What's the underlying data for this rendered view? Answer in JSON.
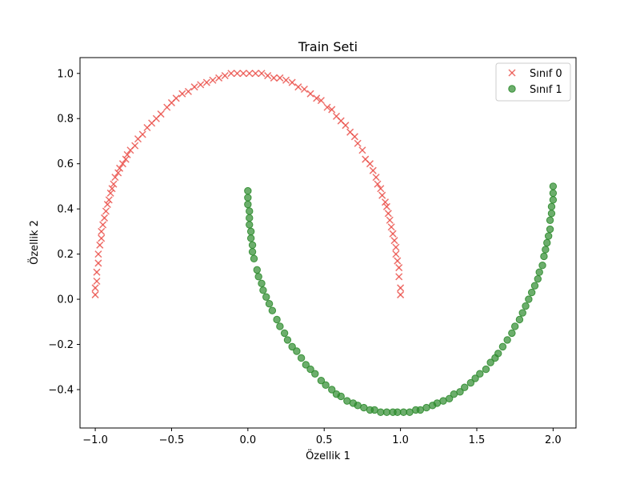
{
  "chart_data": {
    "type": "scatter",
    "title": "Train Seti",
    "xlabel": "Özellik 1",
    "ylabel": "Özellik 2",
    "xlim": [
      -1.1,
      2.15
    ],
    "ylim": [
      -0.57,
      1.07
    ],
    "xticks": [
      -1.0,
      -0.5,
      0.0,
      0.5,
      1.0,
      1.5,
      2.0
    ],
    "xtick_labels": [
      "−1.0",
      "−0.5",
      "0.0",
      "0.5",
      "1.0",
      "1.5",
      "2.0"
    ],
    "yticks": [
      -0.4,
      -0.2,
      0.0,
      0.2,
      0.4,
      0.6,
      0.8,
      1.0
    ],
    "ytick_labels": [
      "−0.4",
      "−0.2",
      "0.0",
      "0.2",
      "0.4",
      "0.6",
      "0.8",
      "1.0"
    ],
    "grid": false,
    "legend_position": "top-right",
    "series": [
      {
        "name": "Sınıf 0",
        "marker": "x",
        "color": "#e8403a",
        "x": [
          -1.0,
          -1.0,
          -0.99,
          -0.99,
          -0.98,
          -0.98,
          -0.97,
          -0.96,
          -0.96,
          -0.95,
          -0.94,
          -0.93,
          -0.92,
          -0.91,
          -0.9,
          -0.89,
          -0.88,
          -0.87,
          -0.85,
          -0.84,
          -0.82,
          -0.8,
          -0.79,
          -0.77,
          -0.74,
          -0.72,
          -0.69,
          -0.66,
          -0.63,
          -0.6,
          -0.57,
          -0.53,
          -0.5,
          -0.47,
          -0.43,
          -0.39,
          -0.35,
          -0.31,
          -0.27,
          -0.23,
          -0.19,
          -0.15,
          -0.11,
          -0.07,
          -0.03,
          0.01,
          0.05,
          0.09,
          0.13,
          0.17,
          0.21,
          0.25,
          0.29,
          0.33,
          0.37,
          0.41,
          0.45,
          0.48,
          0.52,
          0.55,
          0.58,
          0.61,
          0.64,
          0.67,
          0.7,
          0.72,
          0.75,
          0.77,
          0.8,
          0.82,
          0.84,
          0.85,
          0.87,
          0.88,
          0.9,
          0.91,
          0.92,
          0.93,
          0.94,
          0.95,
          0.96,
          0.97,
          0.97,
          0.98,
          0.99,
          0.99,
          1.0,
          1.0
        ],
        "y": [
          0.02,
          0.05,
          0.08,
          0.12,
          0.16,
          0.2,
          0.24,
          0.27,
          0.3,
          0.33,
          0.36,
          0.39,
          0.42,
          0.44,
          0.47,
          0.49,
          0.51,
          0.54,
          0.56,
          0.58,
          0.6,
          0.62,
          0.64,
          0.66,
          0.68,
          0.71,
          0.73,
          0.76,
          0.78,
          0.8,
          0.82,
          0.85,
          0.87,
          0.89,
          0.91,
          0.92,
          0.94,
          0.95,
          0.96,
          0.97,
          0.98,
          0.99,
          1.0,
          1.0,
          1.0,
          1.0,
          1.0,
          1.0,
          0.99,
          0.98,
          0.98,
          0.97,
          0.96,
          0.94,
          0.93,
          0.91,
          0.89,
          0.88,
          0.85,
          0.84,
          0.81,
          0.79,
          0.77,
          0.74,
          0.72,
          0.69,
          0.66,
          0.62,
          0.6,
          0.57,
          0.54,
          0.51,
          0.49,
          0.46,
          0.43,
          0.41,
          0.38,
          0.35,
          0.32,
          0.29,
          0.26,
          0.23,
          0.2,
          0.17,
          0.14,
          0.1,
          0.05,
          0.02
        ]
      },
      {
        "name": "Sınıf 1",
        "marker": "o",
        "color": "#2e8b2e",
        "x": [
          0.0,
          0.0,
          0.0,
          0.01,
          0.01,
          0.01,
          0.02,
          0.02,
          0.03,
          0.03,
          0.04,
          0.06,
          0.07,
          0.09,
          0.1,
          0.12,
          0.14,
          0.16,
          0.19,
          0.21,
          0.24,
          0.26,
          0.29,
          0.32,
          0.35,
          0.38,
          0.41,
          0.44,
          0.48,
          0.51,
          0.55,
          0.58,
          0.61,
          0.65,
          0.69,
          0.72,
          0.76,
          0.8,
          0.83,
          0.87,
          0.91,
          0.95,
          0.98,
          1.02,
          1.06,
          1.1,
          1.13,
          1.17,
          1.21,
          1.24,
          1.28,
          1.32,
          1.35,
          1.39,
          1.42,
          1.46,
          1.49,
          1.52,
          1.56,
          1.59,
          1.62,
          1.64,
          1.67,
          1.7,
          1.73,
          1.75,
          1.78,
          1.8,
          1.82,
          1.84,
          1.86,
          1.88,
          1.9,
          1.91,
          1.93,
          1.94,
          1.95,
          1.96,
          1.97,
          1.98,
          1.98,
          1.99,
          1.99,
          2.0,
          2.0,
          2.0
        ],
        "y": [
          0.48,
          0.45,
          0.42,
          0.39,
          0.36,
          0.33,
          0.3,
          0.27,
          0.24,
          0.21,
          0.18,
          0.13,
          0.1,
          0.07,
          0.04,
          0.01,
          -0.02,
          -0.05,
          -0.09,
          -0.12,
          -0.15,
          -0.18,
          -0.21,
          -0.23,
          -0.26,
          -0.29,
          -0.31,
          -0.33,
          -0.36,
          -0.38,
          -0.4,
          -0.42,
          -0.43,
          -0.45,
          -0.46,
          -0.47,
          -0.48,
          -0.49,
          -0.49,
          -0.5,
          -0.5,
          -0.5,
          -0.5,
          -0.5,
          -0.5,
          -0.49,
          -0.49,
          -0.48,
          -0.47,
          -0.46,
          -0.45,
          -0.44,
          -0.42,
          -0.41,
          -0.39,
          -0.37,
          -0.35,
          -0.33,
          -0.31,
          -0.28,
          -0.26,
          -0.24,
          -0.21,
          -0.18,
          -0.15,
          -0.12,
          -0.09,
          -0.06,
          -0.03,
          0.0,
          0.03,
          0.06,
          0.09,
          0.12,
          0.15,
          0.19,
          0.22,
          0.25,
          0.28,
          0.31,
          0.35,
          0.38,
          0.41,
          0.44,
          0.47,
          0.5
        ]
      }
    ]
  }
}
